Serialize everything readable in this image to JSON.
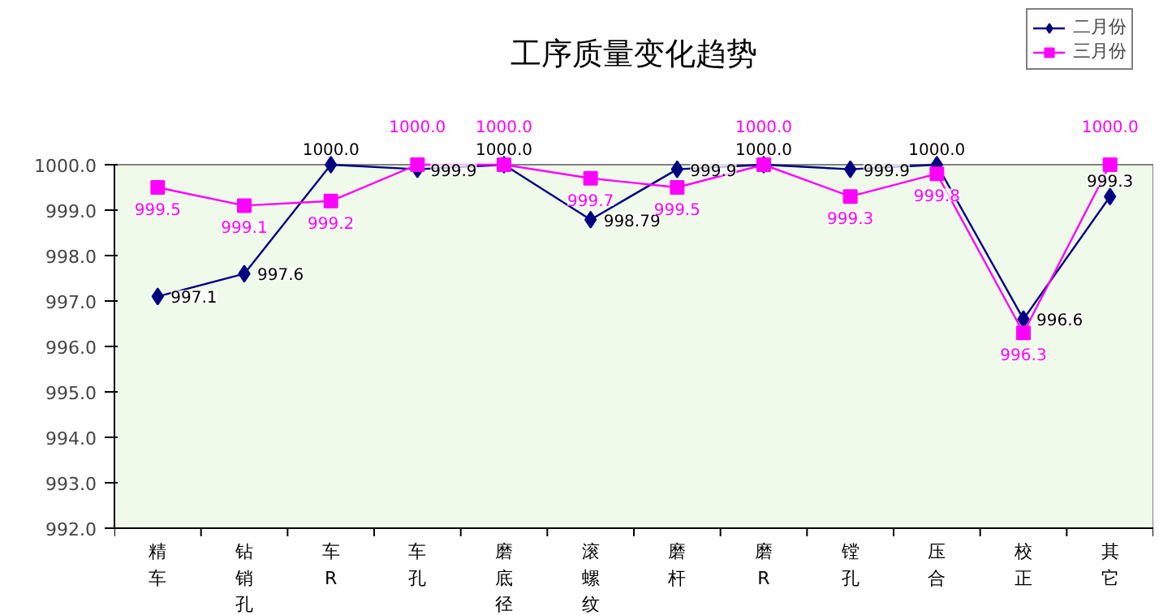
{
  "chart_data": {
    "type": "line",
    "title": "工序质量变化趋势",
    "categories": [
      "精车",
      "钻销孔",
      "车R",
      "车孔",
      "磨底径",
      "滚螺纹",
      "磨杆",
      "磨R",
      "镗孔",
      "压合",
      "校正",
      "其它"
    ],
    "series": [
      {
        "name": "二月份",
        "color": "#000080",
        "marker": "diamond",
        "values": [
          997.1,
          997.6,
          1000.0,
          999.9,
          1000.0,
          998.79,
          999.9,
          1000.0,
          999.9,
          1000.0,
          996.6,
          999.3
        ],
        "value_labels": [
          "997.1",
          "997.6",
          "1000.0",
          "999.9",
          "1000.0",
          "998.79",
          "999.9",
          "1000.0",
          "999.9",
          "1000.0",
          "996.6",
          "999.3"
        ]
      },
      {
        "name": "三月份",
        "color": "#ff00ff",
        "marker": "square",
        "values": [
          999.5,
          999.1,
          999.2,
          1000.0,
          1000.0,
          999.7,
          999.5,
          1000.0,
          999.3,
          999.8,
          996.3,
          1000.0
        ],
        "value_labels": [
          "999.5",
          "999.1",
          "999.2",
          "1000.0",
          "1000.0",
          "999.7",
          "999.5",
          "1000.0",
          "999.3",
          "999.8",
          "996.3",
          "1000.0"
        ]
      }
    ],
    "ylim": [
      992.0,
      1000.0
    ],
    "yticks": [
      {
        "value": 992,
        "label": "992.0"
      },
      {
        "value": 993,
        "label": "993.0"
      },
      {
        "value": 994,
        "label": "994.0"
      },
      {
        "value": 995,
        "label": "995.0"
      },
      {
        "value": 996,
        "label": "996.0"
      },
      {
        "value": 997,
        "label": "997.0"
      },
      {
        "value": 998,
        "label": "998.0"
      },
      {
        "value": 999,
        "label": "999.0"
      },
      {
        "value": 1000,
        "label": "1000.0"
      }
    ],
    "grid": false,
    "legend": "top right"
  }
}
